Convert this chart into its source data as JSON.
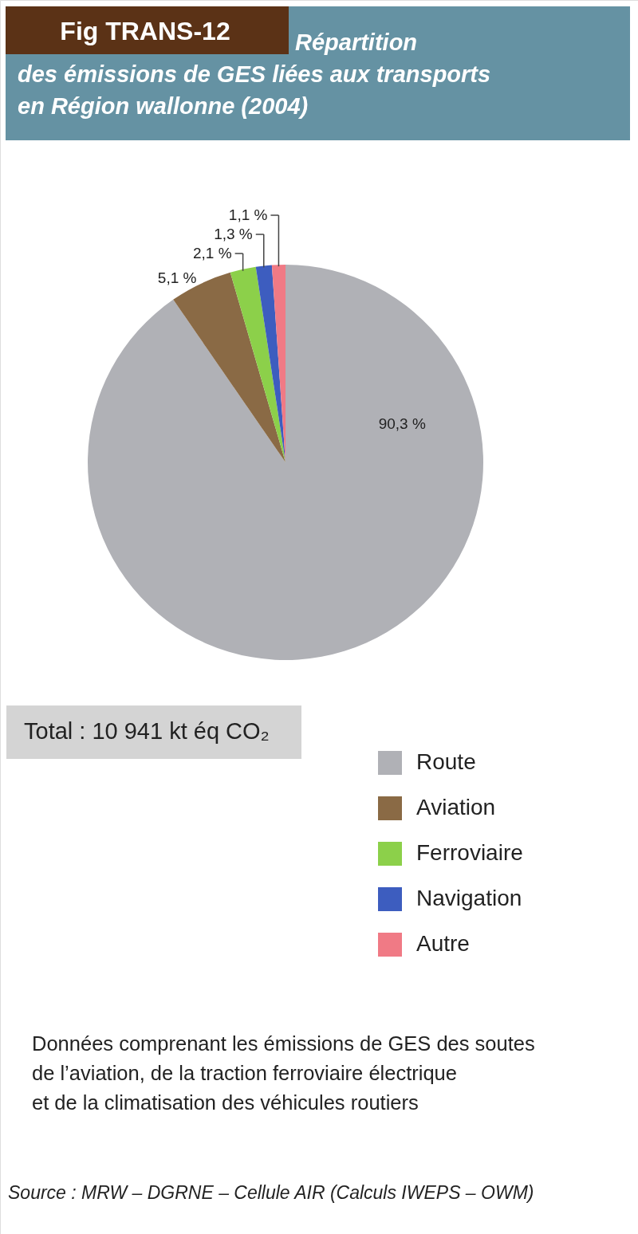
{
  "chart_data": {
    "type": "pie",
    "title": "Fig TRANS-12",
    "subtitle": "Répartition\ndes émissions de GES liées aux transports\nen Région wallonne (2004)",
    "categories": [
      "Route",
      "Aviation",
      "Ferroviaire",
      "Navigation",
      "Autre"
    ],
    "values": [
      90.3,
      5.1,
      2.1,
      1.3,
      1.1
    ],
    "colors": [
      "#b0b1b6",
      "#8a6a45",
      "#8cd04a",
      "#3d5dbf",
      "#f07a85"
    ],
    "value_labels": [
      "90,3 %",
      "5,1 %",
      "2,1 %",
      "1,3 %",
      "1,1 %"
    ],
    "legend": "bottom right",
    "annotations": [
      "Total : 10 941 kt éq CO₂",
      "Données comprenant les émissions de GES des soutes\nde l’aviation, de la traction ferroviaire électrique\net de la climatisation des véhicules routiers",
      "Source : MRW – DGRNE – Cellule AIR (Calculs IWEPS – OWM)"
    ]
  }
}
